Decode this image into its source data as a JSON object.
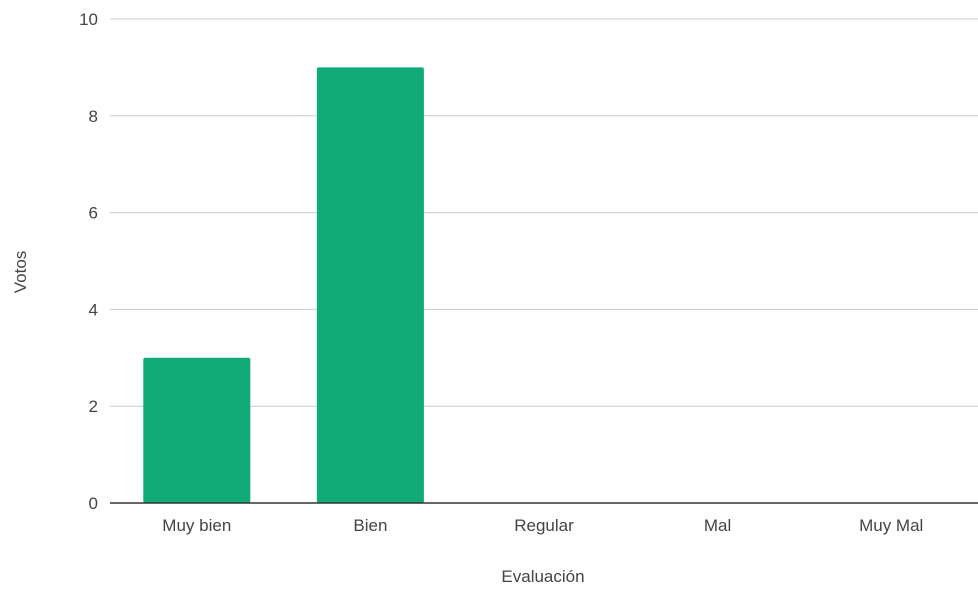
{
  "chart_data": {
    "type": "bar",
    "categories": [
      "Muy bien",
      "Bien",
      "Regular",
      "Mal",
      "Muy Mal"
    ],
    "values": [
      3,
      9,
      0,
      0,
      0
    ],
    "title": "",
    "xlabel": "Evaluación",
    "ylabel": "Votos",
    "ylim": [
      0,
      10
    ],
    "yticks": [
      0,
      2,
      4,
      6,
      8,
      10
    ],
    "ytick_labels": [
      "0",
      "2",
      "4",
      "6",
      "8",
      "10"
    ],
    "grid": true,
    "legend": "none",
    "colors": {
      "bar": "#10ab76",
      "grid": "#cccccc",
      "axis": "#333333",
      "text": "#444444"
    }
  }
}
